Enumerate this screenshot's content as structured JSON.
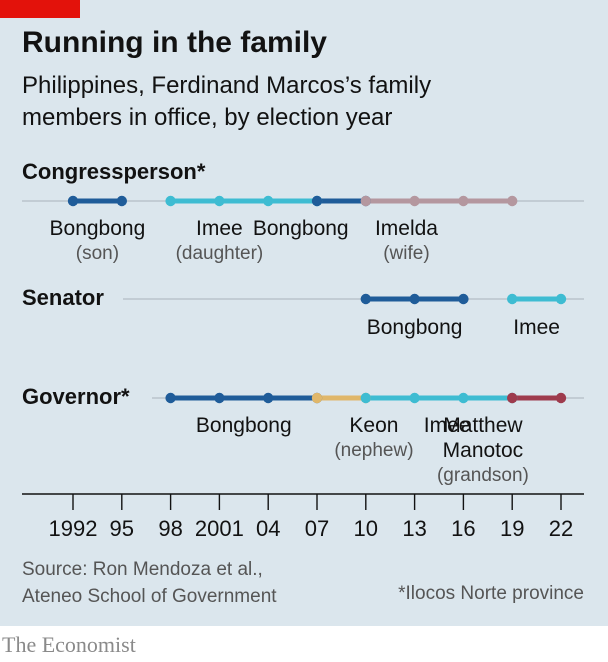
{
  "header": {
    "title": "Running in the family",
    "subtitle": "Philippines, Ferdinand Marcos’s family members in office, by election year"
  },
  "colors": {
    "panel_bg": "#dbe6ed",
    "accent_red": "#e3120b",
    "son": "#1f5c99",
    "daughter": "#3ebcd2",
    "wife": "#b4979f",
    "nephew": "#e0b76a",
    "grandson": "#9e3b4d",
    "track": "#b9c4cc"
  },
  "chart_data": {
    "type": "timeline",
    "x": [
      1992,
      1995,
      1998,
      2001,
      2004,
      2007,
      2010,
      2013,
      2016,
      2019,
      2022
    ],
    "x_tick_labels": [
      "1992",
      "95",
      "98",
      "2001",
      "04",
      "07",
      "10",
      "13",
      "16",
      "19",
      "22"
    ],
    "xlim": [
      1992,
      2022
    ],
    "rows": [
      {
        "label": "Congressperson*",
        "segments": [
          {
            "member": "Bongbong",
            "relation": "(son)",
            "color": "#1f5c99",
            "years": [
              1992,
              1995
            ]
          },
          {
            "member": "Imee",
            "relation": "(daughter)",
            "color": "#3ebcd2",
            "years": [
              1998,
              2001,
              2004,
              2007
            ]
          },
          {
            "member": "Bongbong",
            "relation": "",
            "color": "#1f5c99",
            "years": [
              2007,
              2010
            ]
          },
          {
            "member": "Imelda",
            "relation": "(wife)",
            "color": "#b4979f",
            "years": [
              2010,
              2013,
              2016,
              2019
            ]
          }
        ]
      },
      {
        "label": "Senator",
        "segments": [
          {
            "member": "Bongbong",
            "relation": "",
            "color": "#1f5c99",
            "years": [
              2010,
              2013,
              2016
            ]
          },
          {
            "member": "Imee",
            "relation": "",
            "color": "#3ebcd2",
            "years": [
              2019,
              2022
            ]
          }
        ]
      },
      {
        "label": "Governor*",
        "segments": [
          {
            "member": "Bongbong",
            "relation": "",
            "color": "#1f5c99",
            "years": [
              1998,
              2001,
              2004,
              2007
            ]
          },
          {
            "member": "Keon",
            "relation": "(nephew)",
            "color": "#e0b76a",
            "years": [
              2007,
              2010
            ]
          },
          {
            "member": "Imee",
            "relation": "",
            "color": "#3ebcd2",
            "years": [
              2010,
              2013,
              2016,
              2019
            ]
          },
          {
            "member": "Matthew Manotoc",
            "relation": "(grandson)",
            "color": "#9e3b4d",
            "years": [
              2019,
              2022
            ]
          }
        ]
      }
    ]
  },
  "footer": {
    "source": "Source: Ron Mendoza et al., Ateneo School of Government",
    "footnote": "*Ilocos Norte province",
    "brand": "The Economist"
  }
}
